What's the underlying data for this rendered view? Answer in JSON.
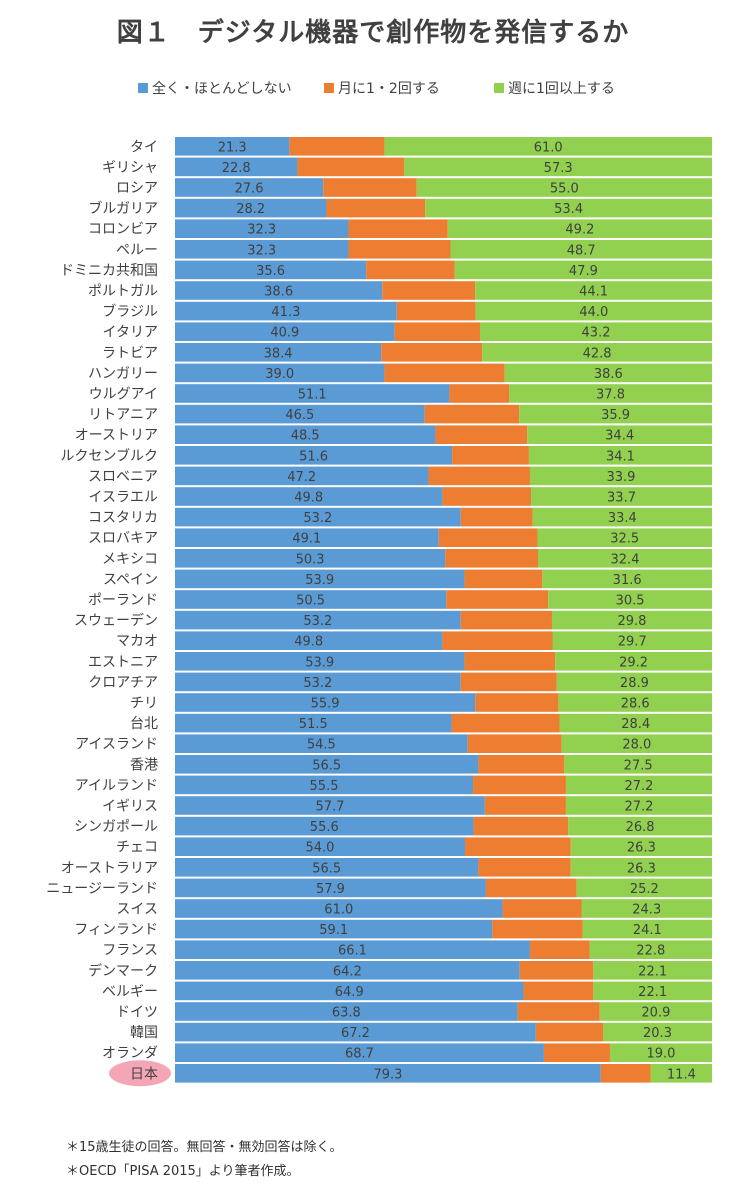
{
  "title": "図１　デジタル機器で創作物を発信するか",
  "legend": {
    "items": [
      {
        "label": "全く・ほとんどしない",
        "color": "#5B9BD5"
      },
      {
        "label": "月に1・2回する",
        "color": "#ED7D31"
      },
      {
        "label": "週に1回以上する",
        "color": "#92D050"
      }
    ]
  },
  "chart_data": {
    "type": "bar",
    "orientation": "horizontal",
    "stacked": "100%",
    "categories": [
      "タイ",
      "ギリシャ",
      "ロシア",
      "ブルガリア",
      "コロンビア",
      "ペルー",
      "ドミニカ共和国",
      "ポルトガル",
      "ブラジル",
      "イタリア",
      "ラトビア",
      "ハンガリー",
      "ウルグアイ",
      "リトアニア",
      "オーストリア",
      "ルクセンブルク",
      "スロベニア",
      "イスラエル",
      "コスタリカ",
      "スロバキア",
      "メキシコ",
      "スペイン",
      "ポーランド",
      "スウェーデン",
      "マカオ",
      "エストニア",
      "クロアチア",
      "チリ",
      "台北",
      "アイスランド",
      "香港",
      "アイルランド",
      "イギリス",
      "シンガポール",
      "チェコ",
      "オーストラリア",
      "ニュージーランド",
      "スイス",
      "フィンランド",
      "フランス",
      "デンマーク",
      "ベルギー",
      "ドイツ",
      "韓国",
      "オランダ",
      "日本"
    ],
    "series": [
      {
        "name": "全く・ほとんどしない",
        "color": "#5B9BD5",
        "values": [
          21.3,
          22.8,
          27.6,
          28.2,
          32.3,
          32.3,
          35.6,
          38.6,
          41.3,
          40.9,
          38.4,
          39.0,
          51.1,
          46.5,
          48.5,
          51.6,
          47.2,
          49.8,
          53.2,
          49.1,
          50.3,
          53.9,
          50.5,
          53.2,
          49.8,
          53.9,
          53.2,
          55.9,
          51.5,
          54.5,
          56.5,
          55.5,
          57.7,
          55.6,
          54.0,
          56.5,
          57.9,
          61.0,
          59.1,
          66.1,
          64.2,
          64.9,
          63.8,
          67.2,
          68.7,
          79.3
        ]
      },
      {
        "name": "月に1・2回する",
        "color": "#ED7D31",
        "values": [
          17.7,
          19.9,
          17.4,
          18.4,
          18.5,
          19.0,
          16.5,
          17.3,
          14.7,
          15.9,
          18.8,
          22.4,
          11.1,
          17.6,
          17.1,
          14.3,
          18.9,
          16.5,
          13.4,
          18.4,
          17.3,
          14.5,
          19.0,
          17.0,
          20.5,
          16.9,
          17.9,
          15.5,
          20.1,
          17.5,
          16.0,
          17.3,
          15.1,
          17.6,
          19.7,
          17.2,
          16.9,
          14.7,
          16.8,
          11.1,
          13.7,
          13.0,
          15.3,
          12.5,
          12.3,
          9.3
        ]
      },
      {
        "name": "週に1回以上する",
        "color": "#92D050",
        "values": [
          61.0,
          57.3,
          55.0,
          53.4,
          49.2,
          48.7,
          47.9,
          44.1,
          44.0,
          43.2,
          42.8,
          38.6,
          37.8,
          35.9,
          34.4,
          34.1,
          33.9,
          33.7,
          33.4,
          32.5,
          32.4,
          31.6,
          30.5,
          29.8,
          29.7,
          29.2,
          28.9,
          28.6,
          28.4,
          28.0,
          27.5,
          27.2,
          27.2,
          26.8,
          26.3,
          26.3,
          25.2,
          24.3,
          24.1,
          22.8,
          22.1,
          22.1,
          20.9,
          20.3,
          19.0,
          11.4
        ]
      }
    ],
    "labeled_series": [
      "全く・ほとんどしない",
      "週に1回以上する"
    ],
    "highlight_category": "日本",
    "xlim": [
      0,
      100
    ],
    "legend_position": "top"
  },
  "notes": [
    "＊15歳生徒の回答。無回答・無効回答は除く。",
    "＊OECD「PISA 2015」より筆者作成。"
  ]
}
